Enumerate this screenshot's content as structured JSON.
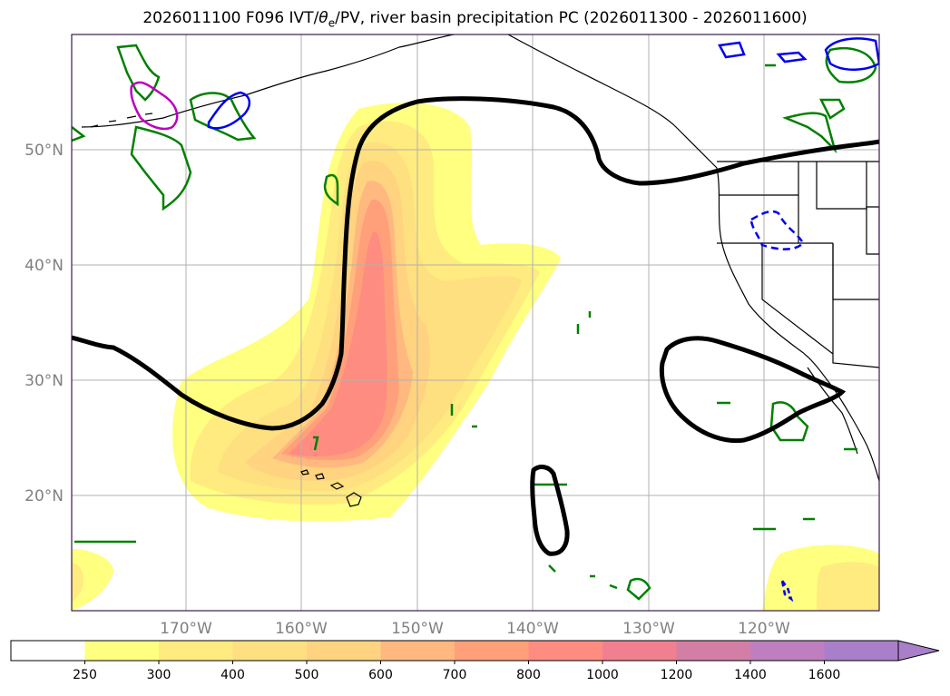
{
  "title": {
    "prefix": "2026011100 F096 IVT/",
    "theta": "θ",
    "theta_sub": "e",
    "suffix": "/PV, river basin precipitation PC (2026011300 - 2026011600)"
  },
  "map": {
    "lat_labels": [
      "50°N",
      "40°N",
      "30°N",
      "20°N"
    ],
    "lon_labels": [
      "170°W",
      "160°W",
      "150°W",
      "140°W",
      "130°W",
      "120°W"
    ]
  },
  "colorbar": {
    "ticks": [
      "250",
      "300",
      "400",
      "500",
      "600",
      "700",
      "800",
      "1000",
      "1200",
      "1400",
      "1600"
    ],
    "colors": [
      "#ffffff",
      "#ffff80",
      "#ffeb80",
      "#ffe080",
      "#ffd37f",
      "#ffb87f",
      "#ffa07a",
      "#ff8c80",
      "#f08090",
      "#d37fa5",
      "#bf7fbf",
      "#a97fca"
    ]
  }
}
